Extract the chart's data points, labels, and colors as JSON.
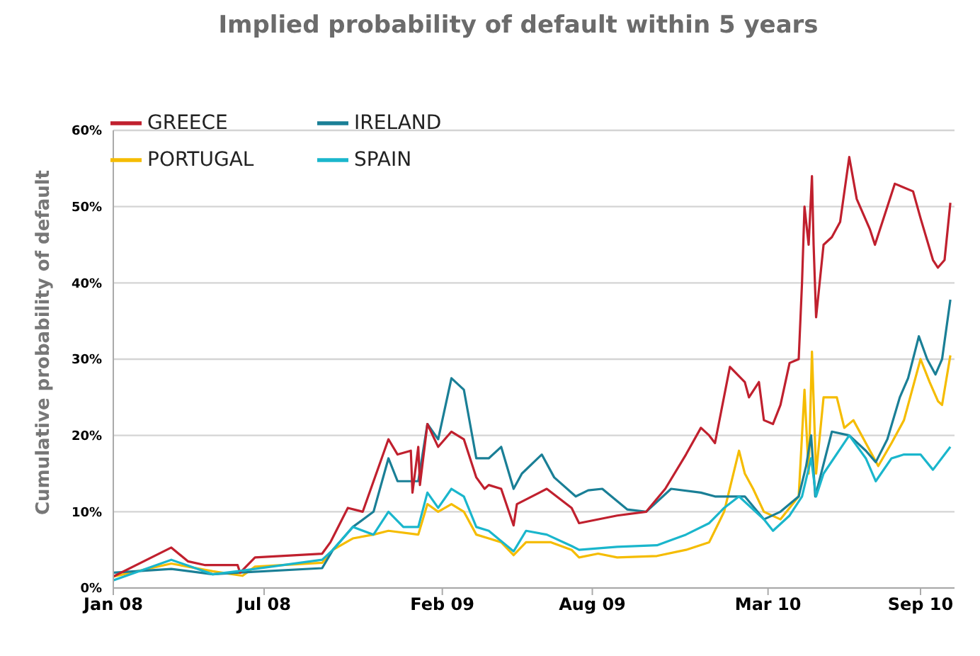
{
  "chart_data": {
    "type": "line",
    "title": "Implied probability of default within 5 years",
    "ylabel": "Cumulative probability of default",
    "xlim": [
      "2008-01-01",
      "2010-10-12"
    ],
    "xticks": [
      {
        "value": "2008-01-01",
        "label": "Jan 08"
      },
      {
        "value": "2008-07-01",
        "label": "Jul 08"
      },
      {
        "value": "2009-02-01",
        "label": "Feb 09"
      },
      {
        "value": "2009-08-01",
        "label": "Aug 09"
      },
      {
        "value": "2010-03-01",
        "label": "Mar 10"
      },
      {
        "value": "2010-09-01",
        "label": "Sep 10"
      }
    ],
    "ylim": [
      0,
      60
    ],
    "yticks": [
      {
        "value": 0,
        "label": "0%"
      },
      {
        "value": 10,
        "label": "10%"
      },
      {
        "value": 20,
        "label": "20%"
      },
      {
        "value": 30,
        "label": "30%"
      },
      {
        "value": 40,
        "label": "40%"
      },
      {
        "value": 50,
        "label": "50%"
      },
      {
        "value": 60,
        "label": "60%"
      }
    ],
    "grid": "y",
    "legend": "top left",
    "marker": "none",
    "line_style": "solid",
    "series": [
      {
        "name": "PORTUGAL",
        "color": "#f5bc00",
        "x": [
          "2008-01-01",
          "2008-03-11",
          "2008-04-30",
          "2008-06-05",
          "2008-06-20",
          "2008-09-09",
          "2008-09-22",
          "2008-10-16",
          "2008-11-10",
          "2008-11-28",
          "2009-01-03",
          "2009-01-14",
          "2009-01-27",
          "2009-02-12",
          "2009-02-27",
          "2009-03-14",
          "2009-03-29",
          "2009-04-13",
          "2009-04-28",
          "2009-05-13",
          "2009-06-12",
          "2009-07-07",
          "2009-07-16",
          "2009-08-08",
          "2009-08-31",
          "2009-10-18",
          "2009-11-22",
          "2009-12-20",
          "2010-01-07",
          "2010-01-25",
          "2010-02-01",
          "2010-02-11",
          "2010-02-24",
          "2010-03-16",
          "2010-04-07",
          "2010-04-14",
          "2010-04-19",
          "2010-04-23",
          "2010-04-28",
          "2010-05-07",
          "2010-05-23",
          "2010-06-01",
          "2010-06-12",
          "2010-07-02",
          "2010-07-12",
          "2010-07-28",
          "2010-08-12",
          "2010-09-01",
          "2010-09-12",
          "2010-09-22",
          "2010-09-27",
          "2010-10-07"
        ],
        "values": [
          1.5,
          3.2,
          2.2,
          1.6,
          2.8,
          3.3,
          5,
          6.5,
          7,
          7.5,
          7,
          11,
          10,
          11,
          10,
          7,
          6.5,
          6,
          4.3,
          6,
          6,
          5,
          4,
          4.5,
          4,
          4.2,
          5,
          6,
          10,
          18,
          15,
          13,
          10,
          9,
          12,
          26,
          15,
          31,
          15,
          25,
          25,
          21,
          22,
          18,
          16,
          19,
          22,
          30,
          27,
          24.5,
          24,
          30.5
        ]
      },
      {
        "name": "IRELAND",
        "color": "#1a7f96",
        "x": [
          "2008-01-01",
          "2008-03-11",
          "2008-04-30",
          "2008-05-30",
          "2008-09-09",
          "2008-09-22",
          "2008-10-16",
          "2008-11-10",
          "2008-11-28",
          "2008-12-09",
          "2009-01-03",
          "2009-01-14",
          "2009-01-27",
          "2009-02-12",
          "2009-02-27",
          "2009-03-14",
          "2009-03-29",
          "2009-04-13",
          "2009-04-28",
          "2009-05-08",
          "2009-06-01",
          "2009-06-16",
          "2009-07-12",
          "2009-07-27",
          "2009-08-13",
          "2009-09-12",
          "2009-10-05",
          "2009-11-04",
          "2009-12-10",
          "2009-12-27",
          "2010-01-14",
          "2010-02-01",
          "2010-02-24",
          "2010-03-16",
          "2010-04-07",
          "2010-04-16",
          "2010-04-22",
          "2010-04-27",
          "2010-05-17",
          "2010-06-07",
          "2010-06-27",
          "2010-07-09",
          "2010-07-23",
          "2010-08-07",
          "2010-08-17",
          "2010-08-30",
          "2010-09-09",
          "2010-09-19",
          "2010-09-27",
          "2010-10-07"
        ],
        "values": [
          2,
          2.5,
          1.8,
          2,
          2.6,
          5,
          8,
          10,
          17,
          14,
          14,
          21.5,
          19.5,
          27.5,
          26,
          17,
          17,
          18.5,
          13,
          15,
          17.5,
          14.5,
          12,
          12.8,
          13,
          10.3,
          10,
          13,
          12.5,
          12,
          12,
          12,
          9,
          10,
          12,
          16,
          20,
          12,
          20.5,
          20,
          18,
          16.5,
          19.5,
          25,
          27.5,
          33,
          30,
          28,
          30,
          37.8
        ]
      },
      {
        "name": "GREECE",
        "color": "#c0202e",
        "x": [
          "2008-01-01",
          "2008-03-11",
          "2008-03-31",
          "2008-04-21",
          "2008-05-30",
          "2008-06-02",
          "2008-06-20",
          "2008-09-09",
          "2008-09-19",
          "2008-10-10",
          "2008-10-28",
          "2008-11-28",
          "2008-12-09",
          "2008-12-25",
          "2008-12-27",
          "2009-01-03",
          "2009-01-05",
          "2009-01-14",
          "2009-01-27",
          "2009-02-12",
          "2009-02-27",
          "2009-03-14",
          "2009-03-24",
          "2009-03-29",
          "2009-04-13",
          "2009-04-28",
          "2009-05-02",
          "2009-06-07",
          "2009-07-07",
          "2009-07-16",
          "2009-08-31",
          "2009-10-05",
          "2009-10-28",
          "2009-11-22",
          "2009-12-10",
          "2009-12-20",
          "2009-12-27",
          "2010-01-14",
          "2010-02-01",
          "2010-02-06",
          "2010-02-18",
          "2010-02-24",
          "2010-03-07",
          "2010-03-16",
          "2010-03-27",
          "2010-04-07",
          "2010-04-11",
          "2010-04-14",
          "2010-04-19",
          "2010-04-23",
          "2010-04-25",
          "2010-04-28",
          "2010-05-07",
          "2010-05-17",
          "2010-05-27",
          "2010-06-07",
          "2010-06-16",
          "2010-07-02",
          "2010-07-08",
          "2010-07-17",
          "2010-08-01",
          "2010-08-23",
          "2010-09-01",
          "2010-09-16",
          "2010-09-22",
          "2010-09-30",
          "2010-10-07"
        ],
        "values": [
          1.5,
          5.3,
          3.5,
          3,
          3,
          2,
          4,
          4.5,
          6,
          10.5,
          10,
          19.5,
          17.5,
          18,
          12.5,
          18.5,
          13.5,
          21.5,
          18.5,
          20.5,
          19.5,
          14.5,
          13,
          13.5,
          13,
          8.2,
          11,
          13,
          10.5,
          8.5,
          9.5,
          10,
          13,
          17.5,
          21,
          20,
          19,
          29,
          27,
          25,
          27,
          22,
          21.5,
          24,
          29.5,
          30,
          40,
          50,
          45,
          54,
          45,
          35.5,
          45,
          46,
          48,
          56.5,
          51,
          47,
          45,
          48,
          53,
          52,
          48.5,
          43,
          42,
          43,
          50.5
        ]
      },
      {
        "name": "SPAIN",
        "color": "#1ab6cc",
        "x": [
          "2008-01-01",
          "2008-03-11",
          "2008-04-30",
          "2008-05-30",
          "2008-09-09",
          "2008-09-22",
          "2008-10-16",
          "2008-11-10",
          "2008-11-28",
          "2008-12-16",
          "2009-01-03",
          "2009-01-14",
          "2009-01-27",
          "2009-02-12",
          "2009-02-27",
          "2009-03-14",
          "2009-03-29",
          "2009-04-28",
          "2009-05-13",
          "2009-06-07",
          "2009-07-07",
          "2009-07-16",
          "2009-08-31",
          "2009-10-18",
          "2009-11-22",
          "2009-12-20",
          "2010-01-07",
          "2010-01-25",
          "2010-02-24",
          "2010-03-07",
          "2010-03-27",
          "2010-04-11",
          "2010-04-22",
          "2010-04-28",
          "2010-05-07",
          "2010-06-07",
          "2010-06-27",
          "2010-07-09",
          "2010-07-28",
          "2010-08-12",
          "2010-09-01",
          "2010-09-16",
          "2010-10-07"
        ],
        "values": [
          1,
          3.7,
          1.8,
          2.2,
          3.7,
          5,
          8,
          7,
          10,
          8,
          8,
          12.5,
          10.5,
          13,
          12,
          8,
          7.5,
          4.8,
          7.5,
          7,
          5.5,
          5,
          5.4,
          5.6,
          7,
          8.5,
          10.5,
          12,
          9,
          7.5,
          9.5,
          12,
          17,
          12,
          15,
          20,
          17,
          14,
          17,
          17.5,
          17.5,
          15.5,
          18.5
        ]
      }
    ]
  }
}
